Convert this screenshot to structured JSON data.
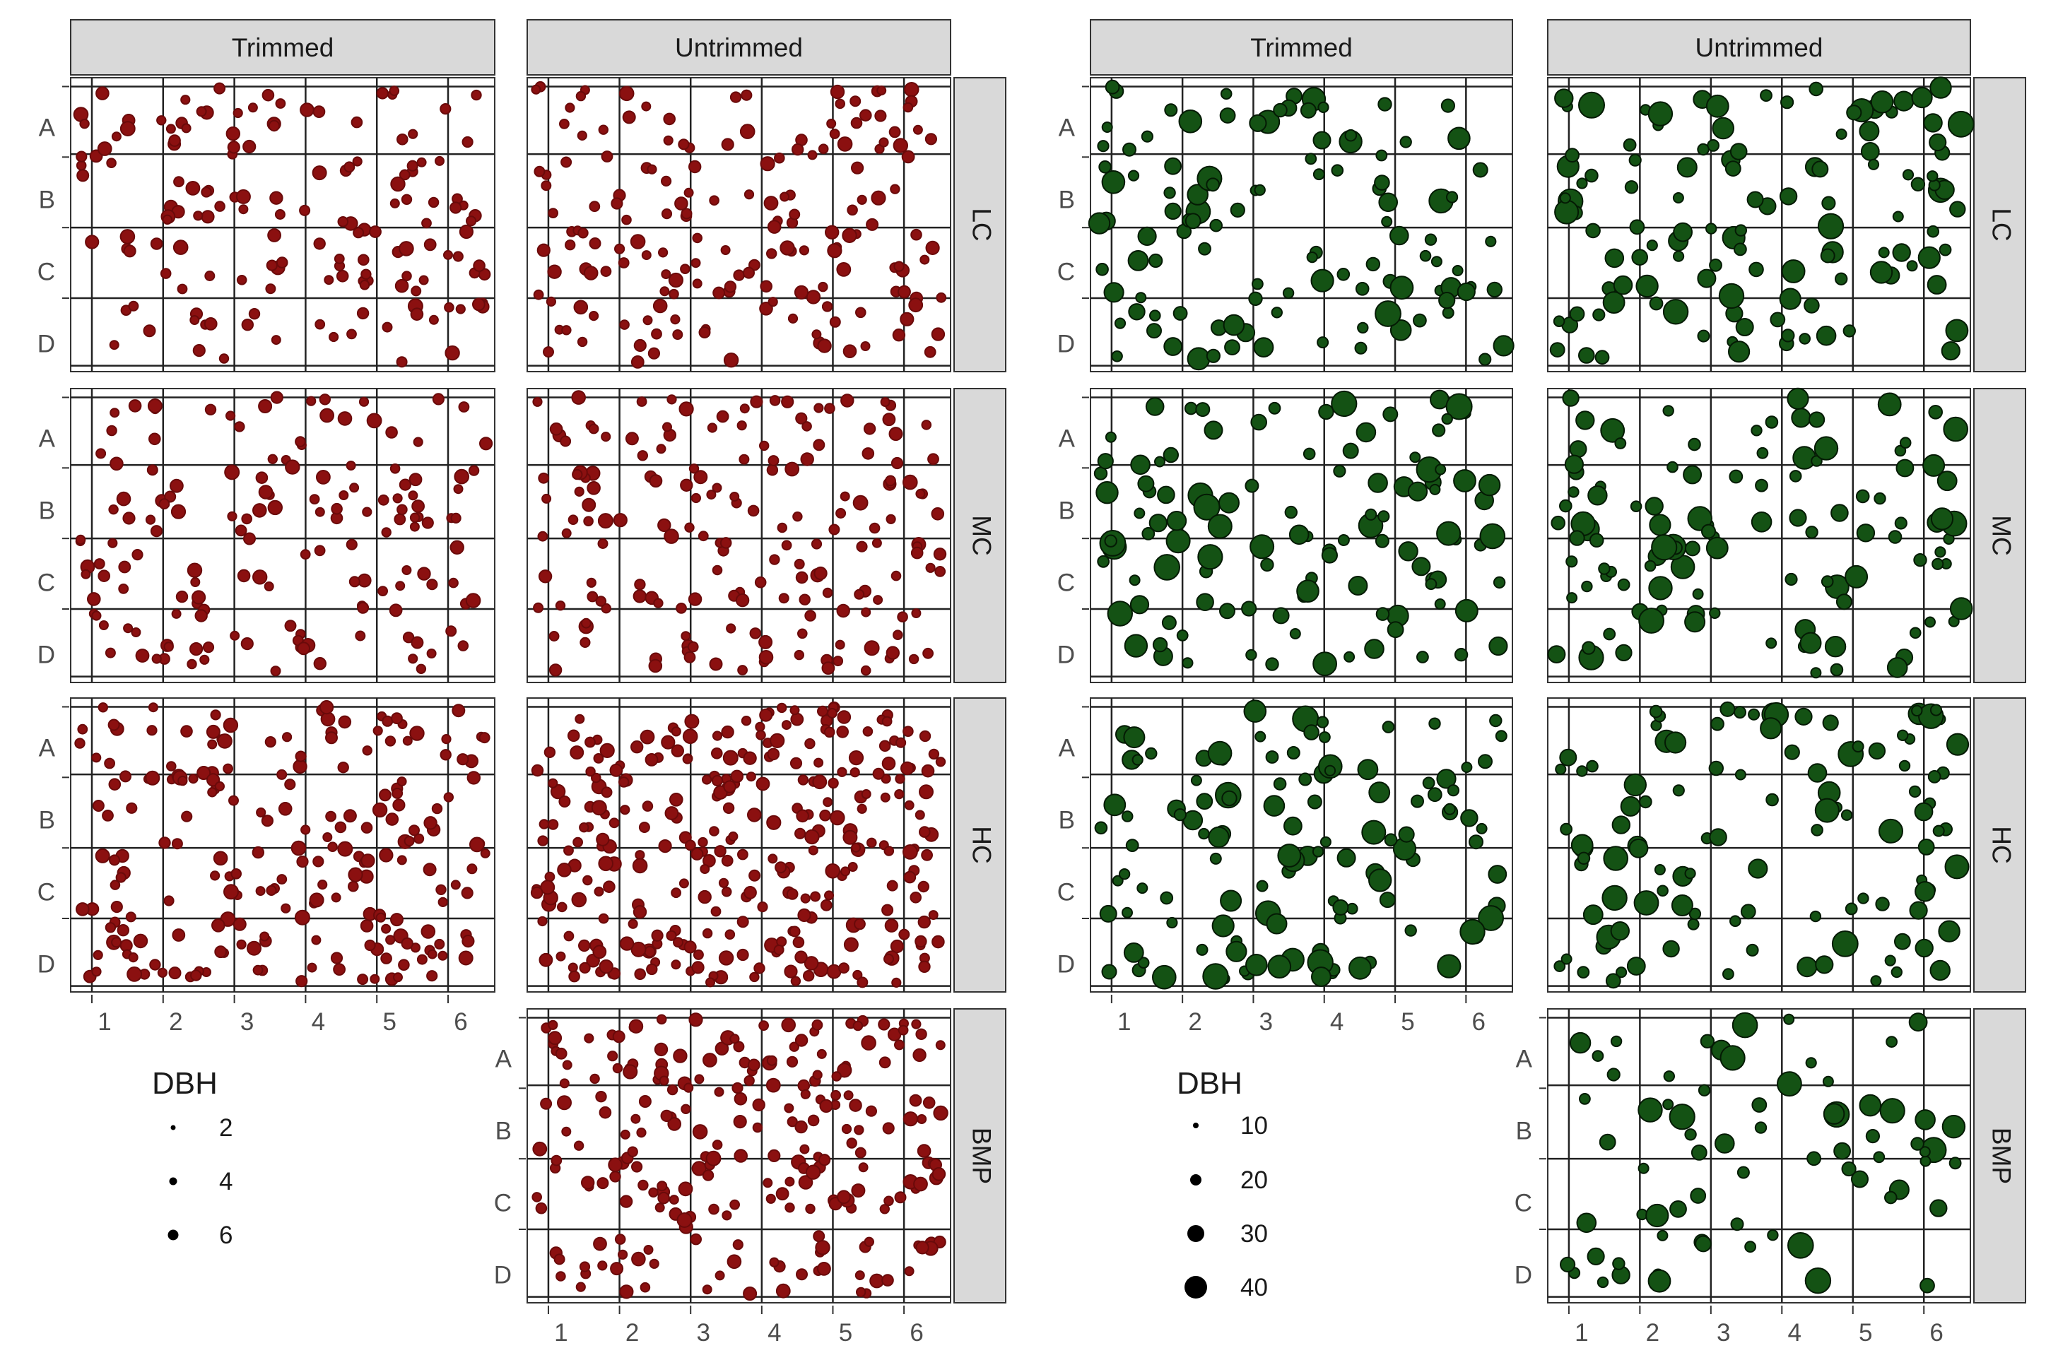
{
  "chart_data": [
    {
      "type": "scatter",
      "panel_group": "left",
      "x_tick_labels": [
        "1",
        "2",
        "3",
        "4",
        "5",
        "6"
      ],
      "y_tick_labels": [
        "A",
        "B",
        "C",
        "D"
      ],
      "col_strips": [
        "Trimmed",
        "Untrimmed"
      ],
      "row_strips": [
        "LC",
        "MC",
        "HC",
        "BMP"
      ],
      "legend": {
        "title": "DBH",
        "items": [
          "2",
          "4",
          "6"
        ]
      },
      "point_color": "#8B1010"
    },
    {
      "type": "scatter",
      "panel_group": "right",
      "x_tick_labels": [
        "1",
        "2",
        "3",
        "4",
        "5",
        "6"
      ],
      "y_tick_labels": [
        "A",
        "B",
        "C",
        "D"
      ],
      "col_strips": [
        "Trimmed",
        "Untrimmed"
      ],
      "row_strips": [
        "LC",
        "MC",
        "HC",
        "BMP"
      ],
      "legend": {
        "title": "DBH",
        "items": [
          "10",
          "20",
          "30",
          "40"
        ]
      },
      "point_color": "#145214"
    }
  ]
}
